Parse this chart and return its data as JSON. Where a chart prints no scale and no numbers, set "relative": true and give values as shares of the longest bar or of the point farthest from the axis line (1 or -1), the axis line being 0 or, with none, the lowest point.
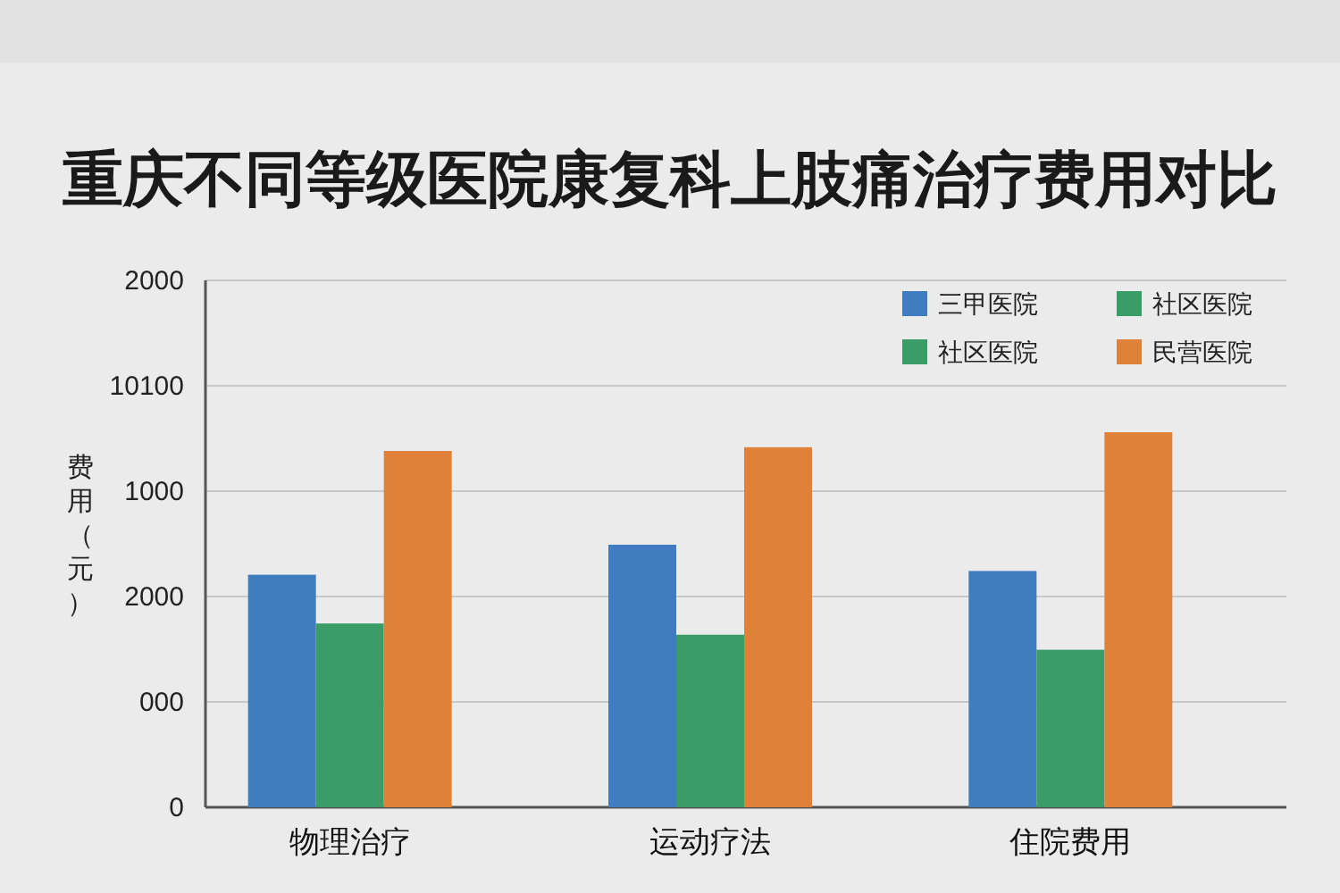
{
  "chart_data": {
    "type": "bar",
    "title": "重庆不同等级医院康复科上肢痛治疗费用对比",
    "ylabel": "费用（元）",
    "categories": [
      "物理治疗",
      "运动疗法",
      "住院费用"
    ],
    "series": [
      {
        "name": "三甲医院",
        "color": "#3f7cc0",
        "values": [
          0.62,
          0.7,
          0.63
        ]
      },
      {
        "name": "社区医院",
        "color": "#3a9d68",
        "values": [
          0.49,
          0.46,
          0.42
        ]
      },
      {
        "name": "社区医院",
        "color": "#3a9d68",
        "values": [
          null,
          null,
          null
        ]
      },
      {
        "name": "民营医院",
        "color": "#e0813a",
        "values": [
          0.95,
          0.96,
          1
        ]
      }
    ],
    "relative": true,
    "annotations": [
      "2000",
      "10100",
      "1000",
      "2000",
      "000",
      "0"
    ],
    "grid": true,
    "legend": "top right"
  }
}
